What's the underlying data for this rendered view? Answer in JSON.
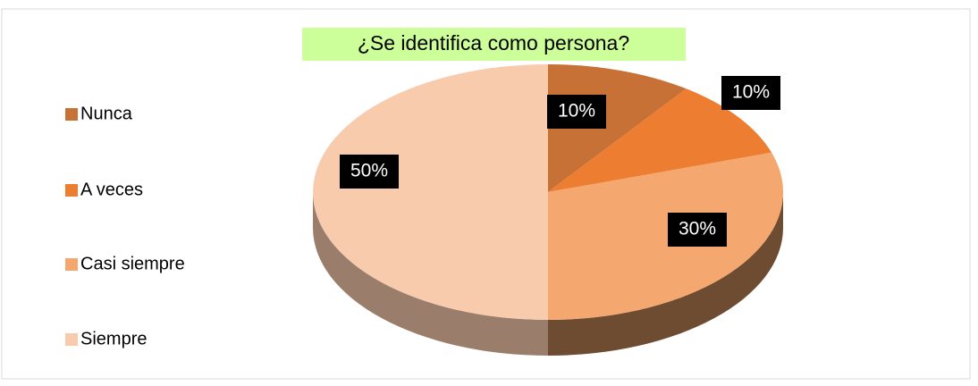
{
  "chart_data": {
    "type": "pie",
    "title": "¿Se identifica como persona?",
    "categories": [
      "Nunca",
      "A veces",
      "Casi siempre",
      "Siempre"
    ],
    "values": [
      10,
      10,
      30,
      50
    ],
    "value_labels": [
      "10%",
      "10%",
      "30%",
      "50%"
    ],
    "colors": [
      "#c87137",
      "#ed7d31",
      "#f4a870",
      "#f8cbad"
    ],
    "legend": "left"
  }
}
